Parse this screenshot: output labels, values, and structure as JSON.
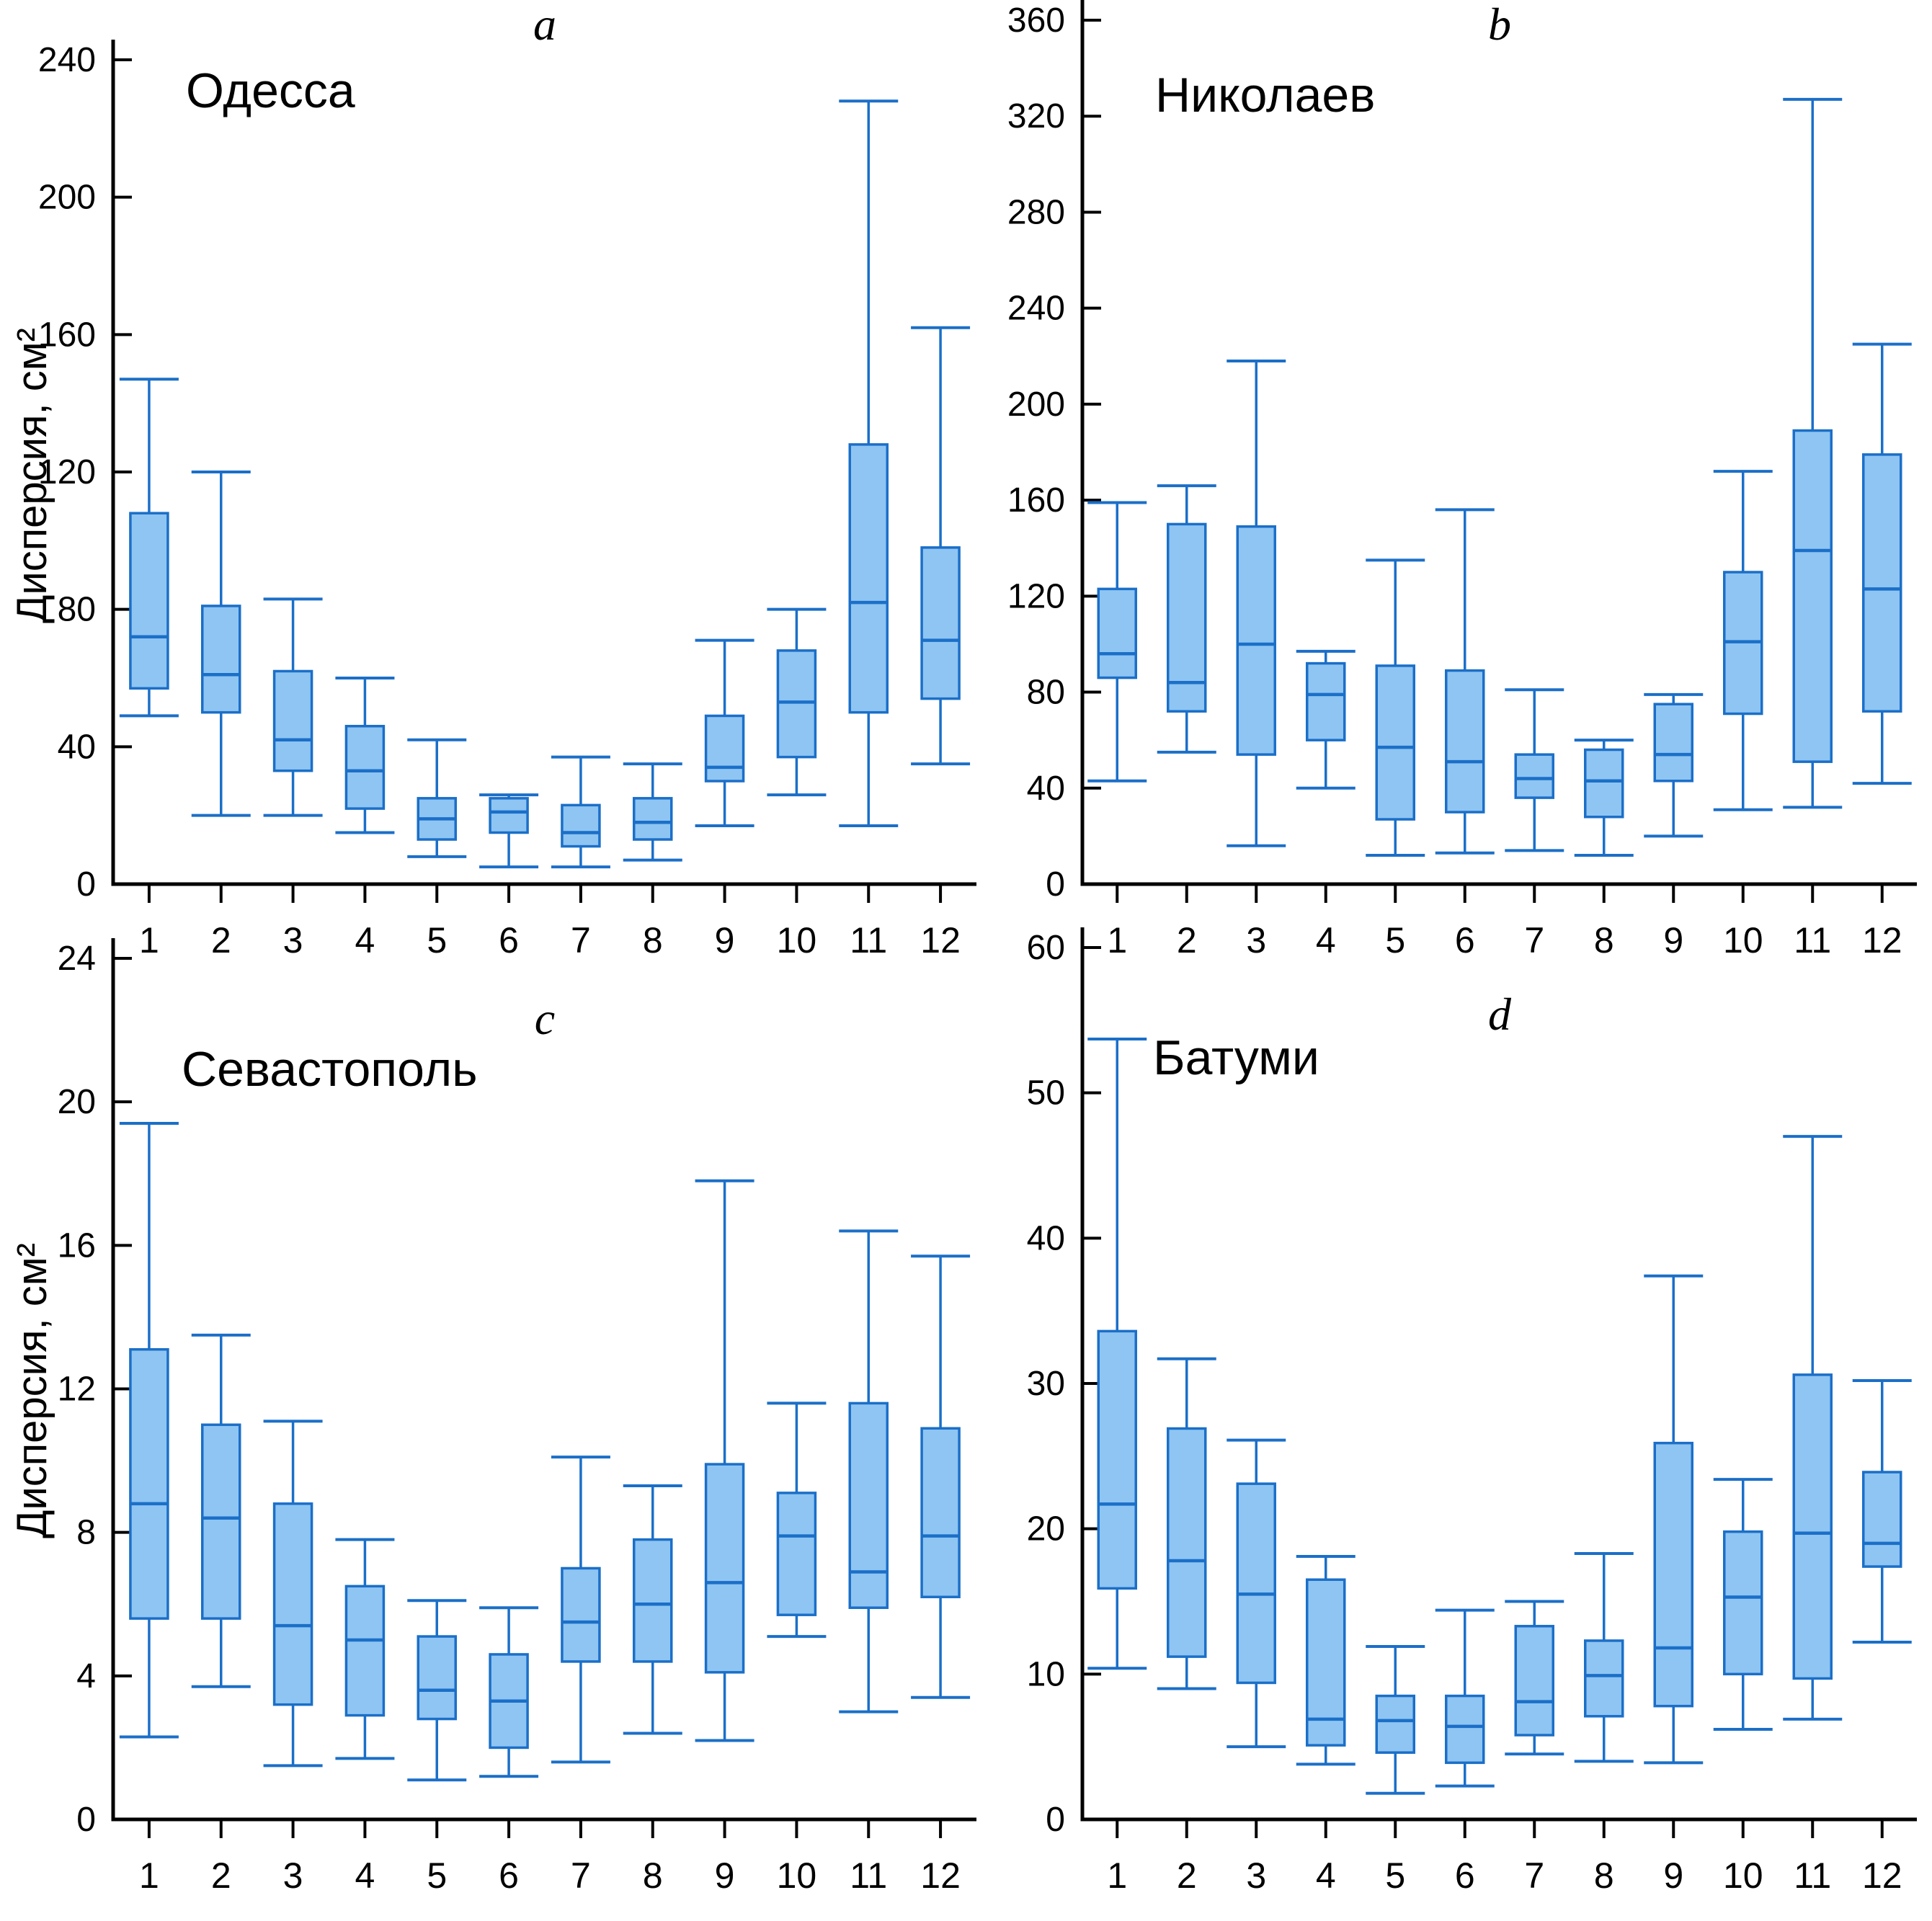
{
  "figure": {
    "background": "#ffffff",
    "axis_color": "#000000",
    "box_fill": "#8FC5F2",
    "box_stroke": "#1B6FC8",
    "median_color": "#1B6FC8"
  },
  "chart_data": [
    {
      "type": "boxplot",
      "panel_label": "a",
      "title": "Одесса",
      "ylabel": "Дисперсия, см²",
      "xlabel": "",
      "ylim": [
        0,
        250
      ],
      "yticks": [
        0,
        40,
        80,
        120,
        160,
        200,
        240
      ],
      "grid": false,
      "categories": [
        "1",
        "2",
        "3",
        "4",
        "5",
        "6",
        "7",
        "8",
        "9",
        "10",
        "11",
        "12"
      ],
      "boxes": [
        {
          "low": 49,
          "q1": 57,
          "median": 72,
          "q3": 108,
          "high": 147
        },
        {
          "low": 20,
          "q1": 50,
          "median": 61,
          "q3": 81,
          "high": 120
        },
        {
          "low": 20,
          "q1": 33,
          "median": 42,
          "q3": 62,
          "high": 83
        },
        {
          "low": 15,
          "q1": 22,
          "median": 33,
          "q3": 46,
          "high": 60
        },
        {
          "low": 8,
          "q1": 13,
          "median": 19,
          "q3": 25,
          "high": 42
        },
        {
          "low": 5,
          "q1": 15,
          "median": 21,
          "q3": 25,
          "high": 26
        },
        {
          "low": 5,
          "q1": 11,
          "median": 15,
          "q3": 23,
          "high": 37
        },
        {
          "low": 7,
          "q1": 13,
          "median": 18,
          "q3": 25,
          "high": 35
        },
        {
          "low": 17,
          "q1": 30,
          "median": 34,
          "q3": 49,
          "high": 71
        },
        {
          "low": 26,
          "q1": 37,
          "median": 53,
          "q3": 68,
          "high": 80
        },
        {
          "low": 17,
          "q1": 50,
          "median": 82,
          "q3": 128,
          "high": 228
        },
        {
          "low": 35,
          "q1": 54,
          "median": 71,
          "q3": 98,
          "high": 162
        }
      ]
    },
    {
      "type": "boxplot",
      "panel_label": "b",
      "title": "Николаев",
      "ylabel": "",
      "xlabel": "",
      "ylim": [
        0,
        366
      ],
      "yticks": [
        0,
        40,
        80,
        120,
        160,
        200,
        240,
        280,
        320,
        360
      ],
      "grid": false,
      "categories": [
        "1",
        "2",
        "3",
        "4",
        "5",
        "6",
        "7",
        "8",
        "9",
        "10",
        "11",
        "12"
      ],
      "boxes": [
        {
          "low": 43,
          "q1": 86,
          "median": 96,
          "q3": 123,
          "high": 159
        },
        {
          "low": 55,
          "q1": 72,
          "median": 84,
          "q3": 150,
          "high": 166
        },
        {
          "low": 16,
          "q1": 54,
          "median": 100,
          "q3": 149,
          "high": 218
        },
        {
          "low": 40,
          "q1": 60,
          "median": 79,
          "q3": 92,
          "high": 97
        },
        {
          "low": 12,
          "q1": 27,
          "median": 57,
          "q3": 91,
          "high": 135
        },
        {
          "low": 13,
          "q1": 30,
          "median": 51,
          "q3": 89,
          "high": 156
        },
        {
          "low": 14,
          "q1": 36,
          "median": 44,
          "q3": 54,
          "high": 81
        },
        {
          "low": 12,
          "q1": 28,
          "median": 43,
          "q3": 56,
          "high": 60
        },
        {
          "low": 20,
          "q1": 43,
          "median": 54,
          "q3": 75,
          "high": 79
        },
        {
          "low": 31,
          "q1": 71,
          "median": 101,
          "q3": 130,
          "high": 172
        },
        {
          "low": 32,
          "q1": 51,
          "median": 139,
          "q3": 189,
          "high": 327
        },
        {
          "low": 42,
          "q1": 72,
          "median": 123,
          "q3": 179,
          "high": 225
        }
      ]
    },
    {
      "type": "boxplot",
      "panel_label": "c",
      "title": "Севастополь",
      "ylabel": "Дисперсия, см²",
      "xlabel": "",
      "ylim": [
        0,
        25
      ],
      "yticks": [
        0,
        4,
        8,
        12,
        16,
        20,
        24
      ],
      "grid": false,
      "categories": [
        "1",
        "2",
        "3",
        "4",
        "5",
        "6",
        "7",
        "8",
        "9",
        "10",
        "11",
        "12"
      ],
      "boxes": [
        {
          "low": 2.3,
          "q1": 5.6,
          "median": 8.8,
          "q3": 13.1,
          "high": 19.4
        },
        {
          "low": 3.7,
          "q1": 5.6,
          "median": 8.4,
          "q3": 11.0,
          "high": 13.5
        },
        {
          "low": 1.5,
          "q1": 3.2,
          "median": 5.4,
          "q3": 8.8,
          "high": 11.1
        },
        {
          "low": 1.7,
          "q1": 2.9,
          "median": 5.0,
          "q3": 6.5,
          "high": 7.8
        },
        {
          "low": 1.1,
          "q1": 2.8,
          "median": 3.6,
          "q3": 5.1,
          "high": 6.1
        },
        {
          "low": 1.2,
          "q1": 2.0,
          "median": 3.3,
          "q3": 4.6,
          "high": 5.9
        },
        {
          "low": 1.6,
          "q1": 4.4,
          "median": 5.5,
          "q3": 7.0,
          "high": 10.1
        },
        {
          "low": 2.4,
          "q1": 4.4,
          "median": 6.0,
          "q3": 7.8,
          "high": 9.3
        },
        {
          "low": 2.2,
          "q1": 4.1,
          "median": 6.6,
          "q3": 9.9,
          "high": 17.8
        },
        {
          "low": 5.1,
          "q1": 5.7,
          "median": 7.9,
          "q3": 9.1,
          "high": 11.6
        },
        {
          "low": 3.0,
          "q1": 5.9,
          "median": 6.9,
          "q3": 11.6,
          "high": 16.4
        },
        {
          "low": 3.4,
          "q1": 6.2,
          "median": 7.9,
          "q3": 10.9,
          "high": 15.7
        }
      ]
    },
    {
      "type": "boxplot",
      "panel_label": "d",
      "title": "Батуми",
      "ylabel": "",
      "xlabel": "",
      "ylim": [
        0,
        61
      ],
      "yticks": [
        0,
        10,
        20,
        30,
        40,
        50,
        60
      ],
      "grid": false,
      "categories": [
        "1",
        "2",
        "3",
        "4",
        "5",
        "6",
        "7",
        "8",
        "9",
        "10",
        "11",
        "12"
      ],
      "boxes": [
        {
          "low": 10.4,
          "q1": 15.9,
          "median": 21.7,
          "q3": 33.6,
          "high": 53.7
        },
        {
          "low": 9.0,
          "q1": 11.2,
          "median": 17.8,
          "q3": 26.9,
          "high": 31.7
        },
        {
          "low": 5.0,
          "q1": 9.4,
          "median": 15.5,
          "q3": 23.1,
          "high": 26.1
        },
        {
          "low": 3.8,
          "q1": 5.1,
          "median": 6.9,
          "q3": 16.5,
          "high": 18.1
        },
        {
          "low": 1.8,
          "q1": 4.6,
          "median": 6.8,
          "q3": 8.5,
          "high": 11.9
        },
        {
          "low": 2.3,
          "q1": 3.9,
          "median": 6.4,
          "q3": 8.5,
          "high": 14.4
        },
        {
          "low": 4.5,
          "q1": 5.8,
          "median": 8.1,
          "q3": 13.3,
          "high": 15.0
        },
        {
          "low": 4.0,
          "q1": 7.1,
          "median": 9.9,
          "q3": 12.3,
          "high": 18.3
        },
        {
          "low": 3.9,
          "q1": 7.8,
          "median": 11.8,
          "q3": 25.9,
          "high": 37.4
        },
        {
          "low": 6.2,
          "q1": 10.0,
          "median": 15.3,
          "q3": 19.8,
          "high": 23.4
        },
        {
          "low": 6.9,
          "q1": 9.7,
          "median": 19.7,
          "q3": 30.6,
          "high": 47.0
        },
        {
          "low": 12.2,
          "q1": 17.4,
          "median": 19.0,
          "q3": 23.9,
          "high": 30.2
        }
      ]
    }
  ]
}
